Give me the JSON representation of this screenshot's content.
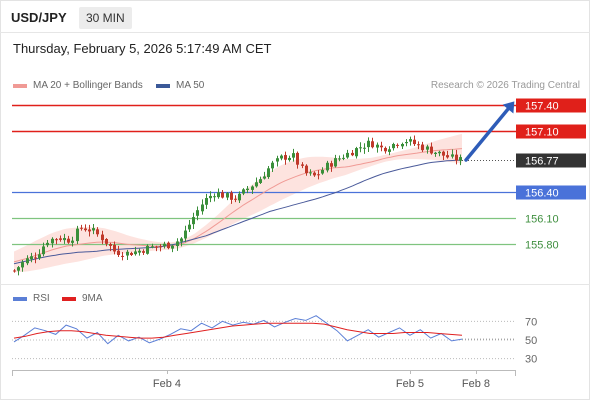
{
  "header": {
    "pair": "USD/JPY",
    "timeframe": "30 MIN",
    "datetime": "Thursday, February 5, 2026 5:17:49 AM CET"
  },
  "legend": {
    "items": [
      {
        "label": "MA 20 + Bollinger Bands",
        "color": "#f09a95"
      },
      {
        "label": "MA 50",
        "color": "#3b5998"
      }
    ],
    "credit": "Research © 2026 Trading Central"
  },
  "rsi_legend": {
    "items": [
      {
        "label": "RSI",
        "color": "#5b7fd6"
      },
      {
        "label": "9MA",
        "color": "#e02020"
      }
    ]
  },
  "colors": {
    "resistance": "#e0201a",
    "support_blue": "#4a72d9",
    "support_green": "#7fc47f",
    "bull_candle": "#3a8f3a",
    "bear_candle": "#c0392b",
    "band_fill": "#fde3df",
    "arrow": "#2e5cb8"
  },
  "chart_data": {
    "type": "candlestick",
    "title": "USD/JPY",
    "timeframe": "30 MIN",
    "ylim": [
      155.45,
      157.55
    ],
    "x_labels": [
      "Feb 4",
      "Feb 5",
      "Feb 8"
    ],
    "levels": [
      {
        "value": "157.40",
        "type": "resistance",
        "boxed": true
      },
      {
        "value": "157.10",
        "type": "resistance",
        "boxed": true
      },
      {
        "value": "156.77",
        "type": "last_price",
        "boxed": true
      },
      {
        "value": "156.40",
        "type": "support",
        "boxed": true
      },
      {
        "value": "156.10",
        "type": "support",
        "boxed": false
      },
      {
        "value": "155.80",
        "type": "support",
        "boxed": false
      }
    ],
    "close_path": [
      155.5,
      155.62,
      155.68,
      155.85,
      155.88,
      155.85,
      156.0,
      155.96,
      155.86,
      155.72,
      155.7,
      155.72,
      155.76,
      155.78,
      155.8,
      155.87,
      156.1,
      156.3,
      156.4,
      156.35,
      156.33,
      156.45,
      156.55,
      156.7,
      156.8,
      156.82,
      156.62,
      156.58,
      156.7,
      156.78,
      156.85,
      156.92,
      156.97,
      156.9,
      156.95,
      157.0,
      156.95,
      156.9,
      156.85,
      156.8,
      156.77
    ],
    "ma20": [
      155.6,
      155.64,
      155.69,
      155.74,
      155.78,
      155.8,
      155.82,
      155.83,
      155.82,
      155.8,
      155.79,
      155.78,
      155.78,
      155.8,
      155.86,
      155.95,
      156.05,
      156.16,
      156.26,
      156.35,
      156.44,
      156.52,
      156.58,
      156.63,
      156.66,
      156.68,
      156.69,
      156.72,
      156.75,
      156.79,
      156.82,
      156.84,
      156.86,
      156.88,
      156.89,
      156.9
    ],
    "ma50": [
      155.58,
      155.62,
      155.66,
      155.69,
      155.71,
      155.72,
      155.74,
      155.75,
      155.76,
      155.77,
      155.8,
      155.85,
      155.9,
      155.97,
      156.04,
      156.11,
      156.18,
      156.23,
      156.28,
      156.33,
      156.39,
      156.46,
      156.54,
      156.61,
      156.66,
      156.7,
      156.74,
      156.76,
      156.77
    ],
    "rsi_levels": [
      "70",
      "50",
      "30"
    ],
    "rsi_range": [
      20,
      80
    ],
    "rsi": [
      48,
      55,
      63,
      60,
      56,
      66,
      62,
      52,
      58,
      46,
      55,
      49,
      53,
      47,
      51,
      56,
      62,
      60,
      68,
      63,
      70,
      66,
      69,
      67,
      71,
      64,
      69,
      73,
      71,
      76,
      68,
      60,
      49,
      55,
      61,
      53,
      58,
      63,
      55,
      61,
      52,
      57,
      49,
      51
    ],
    "rsi_ma": [
      52,
      54,
      57,
      59,
      60,
      60,
      59,
      57,
      55,
      54,
      53,
      52,
      52,
      53,
      55,
      57,
      59,
      61,
      63,
      65,
      66,
      67,
      68,
      68,
      68,
      68,
      68,
      67,
      64,
      61,
      59,
      57,
      57,
      57,
      58,
      58,
      58,
      57,
      56,
      55
    ],
    "forecast_arrow": {
      "from": "156.77",
      "to": "157.40"
    }
  }
}
